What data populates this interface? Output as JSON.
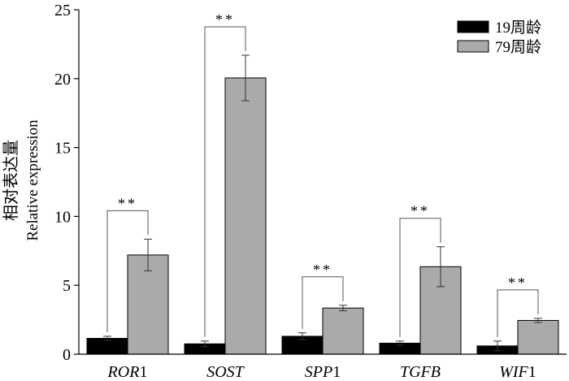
{
  "chart_data": {
    "type": "bar",
    "title": "",
    "ylabel": "相对表达量",
    "ylabel_en": "Relative expression",
    "xlabel": "",
    "ylim": [
      0,
      25
    ],
    "yticks": [
      0,
      5,
      10,
      15,
      20,
      25
    ],
    "categories": [
      {
        "italic": "ROR",
        "suffix": "1"
      },
      {
        "italic": "SOST",
        "suffix": ""
      },
      {
        "italic": "SPP",
        "suffix": "1"
      },
      {
        "italic": "TGFB",
        "suffix": ""
      },
      {
        "italic": "WIF",
        "suffix": "1"
      }
    ],
    "series": [
      {
        "name": "19周龄",
        "color": "#000000",
        "values": [
          1.15,
          0.75,
          1.3,
          0.8,
          0.6
        ],
        "errors": [
          0.15,
          0.2,
          0.25,
          0.15,
          0.35
        ]
      },
      {
        "name": "79周龄",
        "color": "#aaaaaa",
        "values": [
          7.2,
          20.05,
          3.35,
          6.35,
          2.45
        ],
        "errors": [
          1.15,
          1.65,
          0.2,
          1.45,
          0.15
        ]
      }
    ],
    "significance": [
      "**",
      "**",
      "**",
      "**",
      "**"
    ],
    "legend_position": "top-right"
  }
}
